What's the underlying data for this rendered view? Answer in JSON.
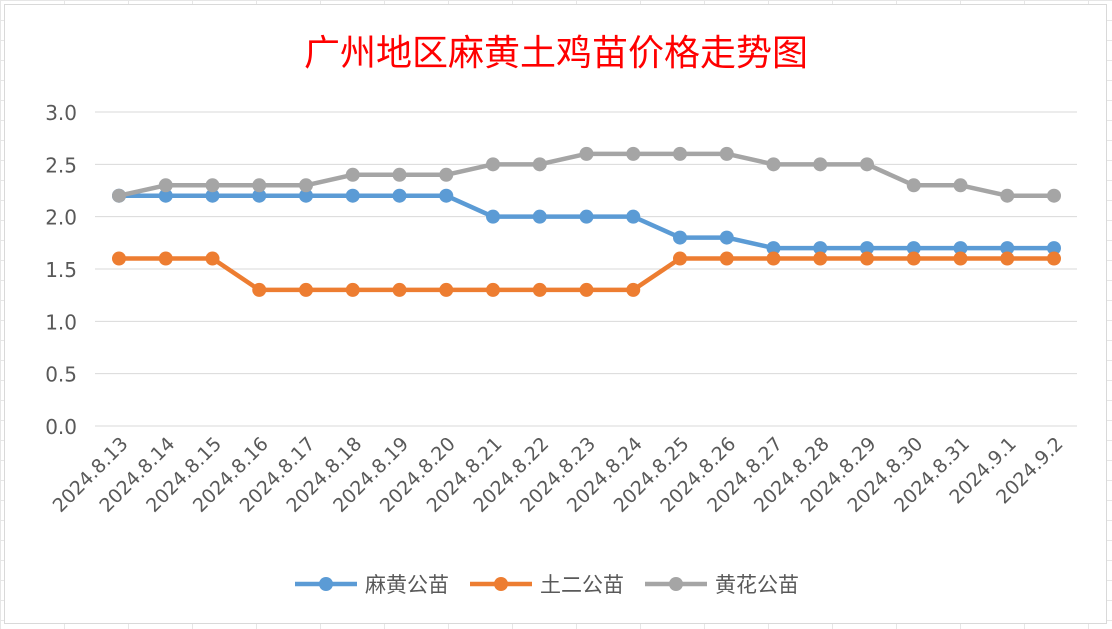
{
  "chart_data": {
    "type": "line",
    "title": "广州地区麻黄土鸡苗价格走势图",
    "title_color": "#ff0000",
    "categories": [
      "2024.8.13",
      "2024.8.14",
      "2024.8.15",
      "2024.8.16",
      "2024.8.17",
      "2024.8.18",
      "2024.8.19",
      "2024.8.20",
      "2024.8.21",
      "2024.8.22",
      "2024.8.23",
      "2024.8.24",
      "2024.8.25",
      "2024.8.26",
      "2024.8.27",
      "2024.8.28",
      "2024.8.29",
      "2024.8.30",
      "2024.8.31",
      "2024.9.1",
      "2024.9.2"
    ],
    "series": [
      {
        "name": "麻黄公苗",
        "color": "#5b9bd5",
        "values": [
          2.2,
          2.2,
          2.2,
          2.2,
          2.2,
          2.2,
          2.2,
          2.2,
          2.0,
          2.0,
          2.0,
          2.0,
          1.8,
          1.8,
          1.7,
          1.7,
          1.7,
          1.7,
          1.7,
          1.7,
          1.7
        ]
      },
      {
        "name": "土二公苗",
        "color": "#ed7d31",
        "values": [
          1.6,
          1.6,
          1.6,
          1.3,
          1.3,
          1.3,
          1.3,
          1.3,
          1.3,
          1.3,
          1.3,
          1.3,
          1.6,
          1.6,
          1.6,
          1.6,
          1.6,
          1.6,
          1.6,
          1.6,
          1.6
        ]
      },
      {
        "name": "黄花公苗",
        "color": "#a5a5a5",
        "values": [
          2.2,
          2.3,
          2.3,
          2.3,
          2.3,
          2.4,
          2.4,
          2.4,
          2.5,
          2.5,
          2.6,
          2.6,
          2.6,
          2.6,
          2.5,
          2.5,
          2.5,
          2.3,
          2.3,
          2.2,
          2.2
        ]
      }
    ],
    "yticks": [
      "0.0",
      "0.5",
      "1.0",
      "1.5",
      "2.0",
      "2.5",
      "3.0"
    ],
    "ylim": [
      0,
      3
    ],
    "grid": true,
    "legend_position": "bottom"
  }
}
